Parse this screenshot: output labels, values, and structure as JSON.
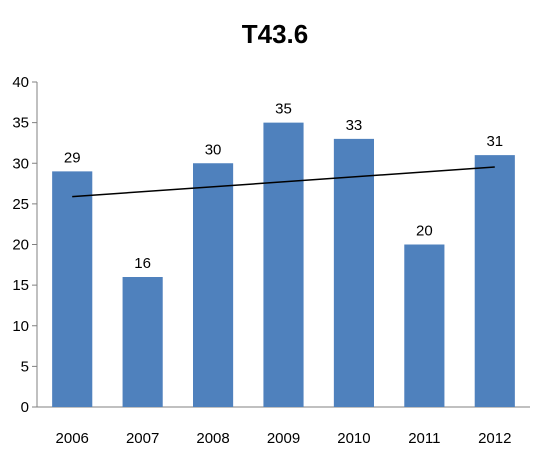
{
  "chart_data": {
    "type": "bar",
    "title": "T43.6",
    "categories": [
      "2006",
      "2007",
      "2008",
      "2009",
      "2010",
      "2011",
      "2012"
    ],
    "values": [
      29,
      16,
      30,
      35,
      33,
      20,
      31
    ],
    "ylim": [
      0,
      40
    ],
    "yticks": [
      0,
      5,
      10,
      15,
      20,
      25,
      30,
      35,
      40
    ],
    "data_labels": true,
    "trendline": {
      "type": "linear",
      "color": "#000000"
    },
    "grid": false,
    "legend": "none",
    "bar_color": "#4f81bd"
  }
}
